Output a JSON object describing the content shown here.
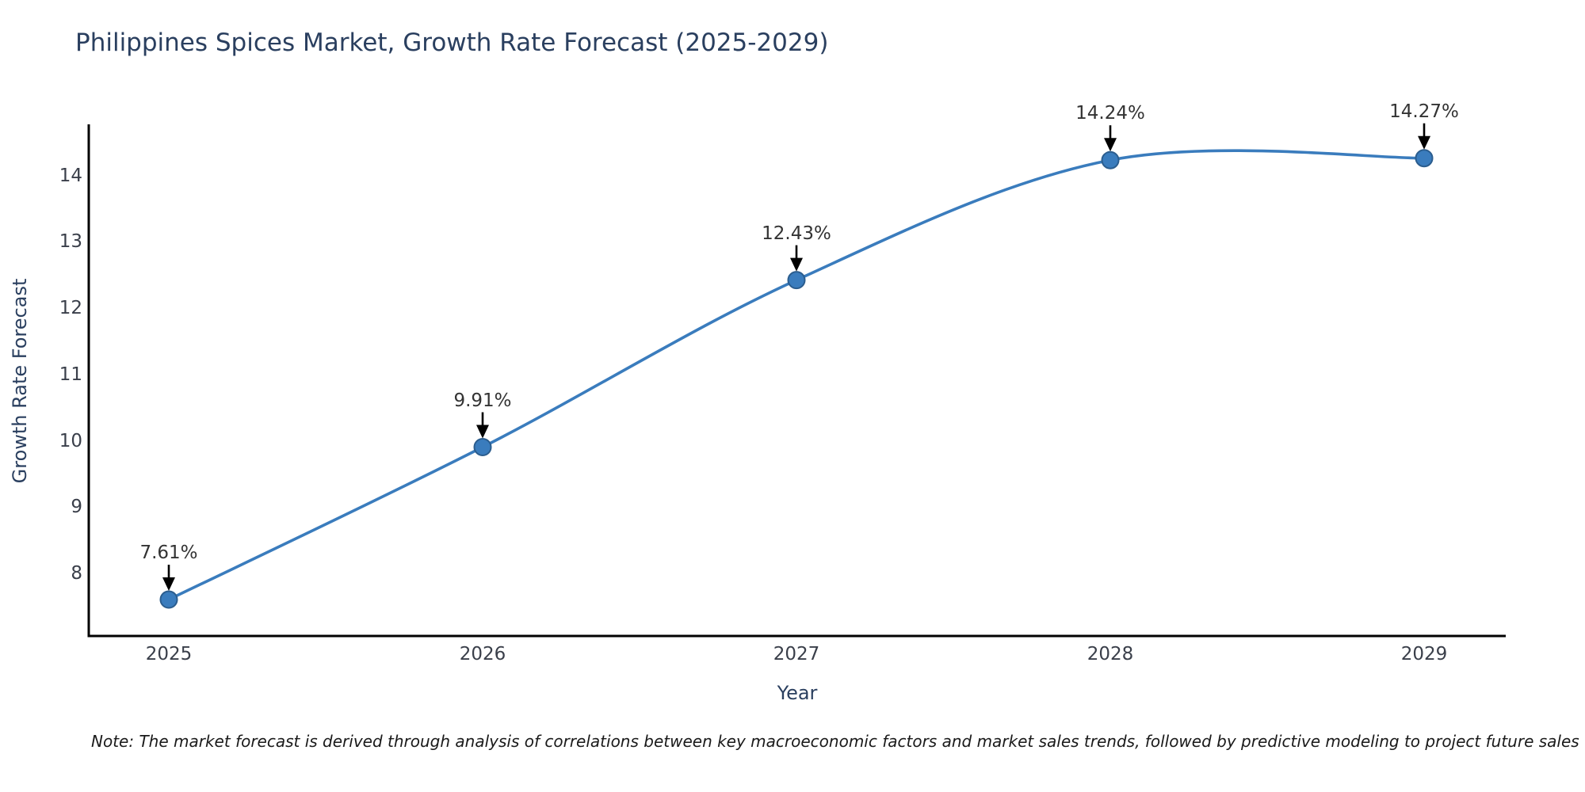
{
  "title": "Philippines Spices Market, Growth Rate Forecast (2025-2029)",
  "note": "Note: The market forecast is derived through analysis of correlations between key macroeconomic factors and market sales trends, followed by predictive modeling to project future sales",
  "chart_data": {
    "type": "line",
    "title": "Philippines Spices Market, Growth Rate Forecast (2025-2029)",
    "xlabel": "Year",
    "ylabel": "Growth Rate Forecast",
    "categories": [
      "2025",
      "2026",
      "2027",
      "2028",
      "2029"
    ],
    "x": [
      2025,
      2026,
      2027,
      2028,
      2029
    ],
    "values": [
      7.61,
      9.91,
      12.43,
      14.24,
      14.27
    ],
    "annotations": [
      "7.61%",
      "9.91%",
      "12.43%",
      "14.24%",
      "14.27%"
    ],
    "yticks": [
      "8",
      "9",
      "10",
      "11",
      "12",
      "13",
      "14"
    ],
    "ytick_values": [
      8,
      9,
      10,
      11,
      12,
      13,
      14
    ],
    "xlim": [
      2024.745,
      2029.26
    ],
    "ylim": [
      7.06,
      14.78
    ],
    "grid": false,
    "legend": "none",
    "line_shape": "spline",
    "marker_style": "circle-with-down-arrow-annotation",
    "colors": {
      "line": "#3a7cbd",
      "marker": "#3a7cbd",
      "marker_edge": "#2b5d8e",
      "axis": "#000000",
      "arrow": "#000000",
      "title_text": "#2a3f5f",
      "axis_title_text": "#2a3f5f",
      "tick_text": "#3a3f4a",
      "annotation_text": "#333333",
      "note_text": "#1a1a1a",
      "background": "#ffffff"
    }
  }
}
